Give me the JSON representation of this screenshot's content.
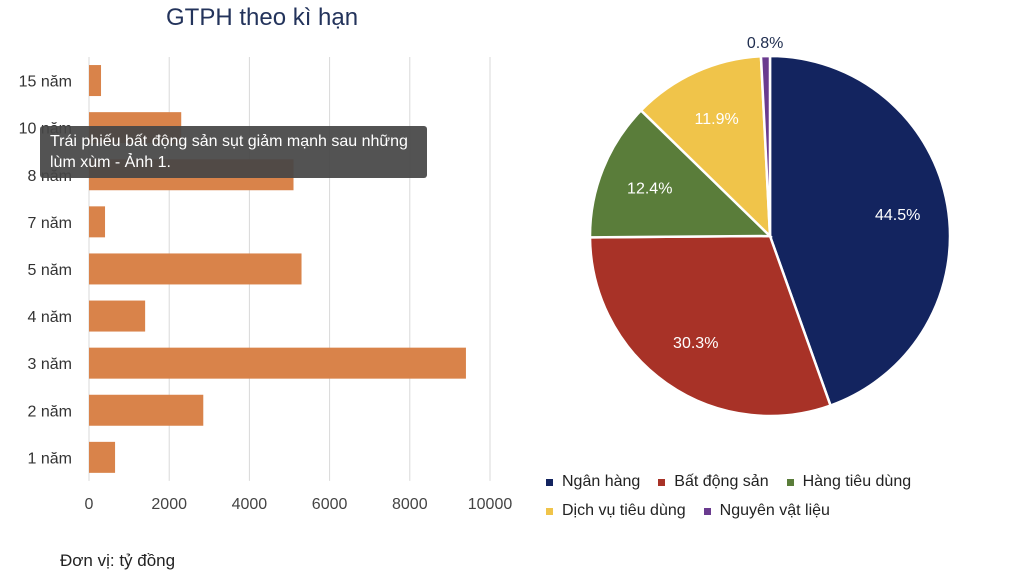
{
  "bar_title": "GTPH theo kì hạn",
  "unit_note": "Đơn vị: tỷ đồng",
  "tooltip": "Trái phiếu bất động sản sụt giảm mạnh sau những lùm xùm - Ảnh 1.",
  "colors": {
    "bar": "#d9834a",
    "grid": "#d9d9d9",
    "title": "#23335b",
    "ngan_hang": "#13245f",
    "bat_dong_san": "#a83227",
    "hang_tieu_dung": "#5a7d3a",
    "dich_vu_tieu_dung": "#f0c44a",
    "nguyen_vat_lieu": "#6a3b8f"
  },
  "chart_data": [
    {
      "type": "bar",
      "orientation": "horizontal",
      "title": "GTPH theo kì hạn",
      "categories": [
        "15 năm",
        "10 năm",
        "8 năm",
        "7 năm",
        "5 năm",
        "4 năm",
        "3 năm",
        "2 năm",
        "1 năm"
      ],
      "values": [
        300,
        2300,
        5100,
        400,
        5300,
        1400,
        9400,
        2850,
        650
      ],
      "xlim": [
        0,
        10000
      ],
      "xticks": [
        "0",
        "2000",
        "4000",
        "6000",
        "8000",
        "10000"
      ],
      "grid": true,
      "unit": "Đơn vị: tỷ đồng"
    },
    {
      "type": "pie",
      "slices": [
        {
          "label": "Ngân hàng",
          "value": 44.5,
          "display": "44.5%",
          "color": "#13245f",
          "text_color": "#ffffff"
        },
        {
          "label": "Bất động sản",
          "value": 30.3,
          "display": "30.3%",
          "color": "#a83227",
          "text_color": "#ffffff"
        },
        {
          "label": "Hàng tiêu dùng",
          "value": 12.4,
          "display": "12.4%",
          "color": "#5a7d3a",
          "text_color": "#ffffff"
        },
        {
          "label": "Dịch vụ tiêu dùng",
          "value": 11.9,
          "display": "11.9%",
          "color": "#f0c44a",
          "text_color": "#ffffff"
        },
        {
          "label": "Nguyên vật liệu",
          "value": 0.8,
          "display": "0.8%",
          "color": "#6a3b8f",
          "text_color": "#1f2d4f"
        }
      ],
      "legend_position": "bottom"
    }
  ]
}
